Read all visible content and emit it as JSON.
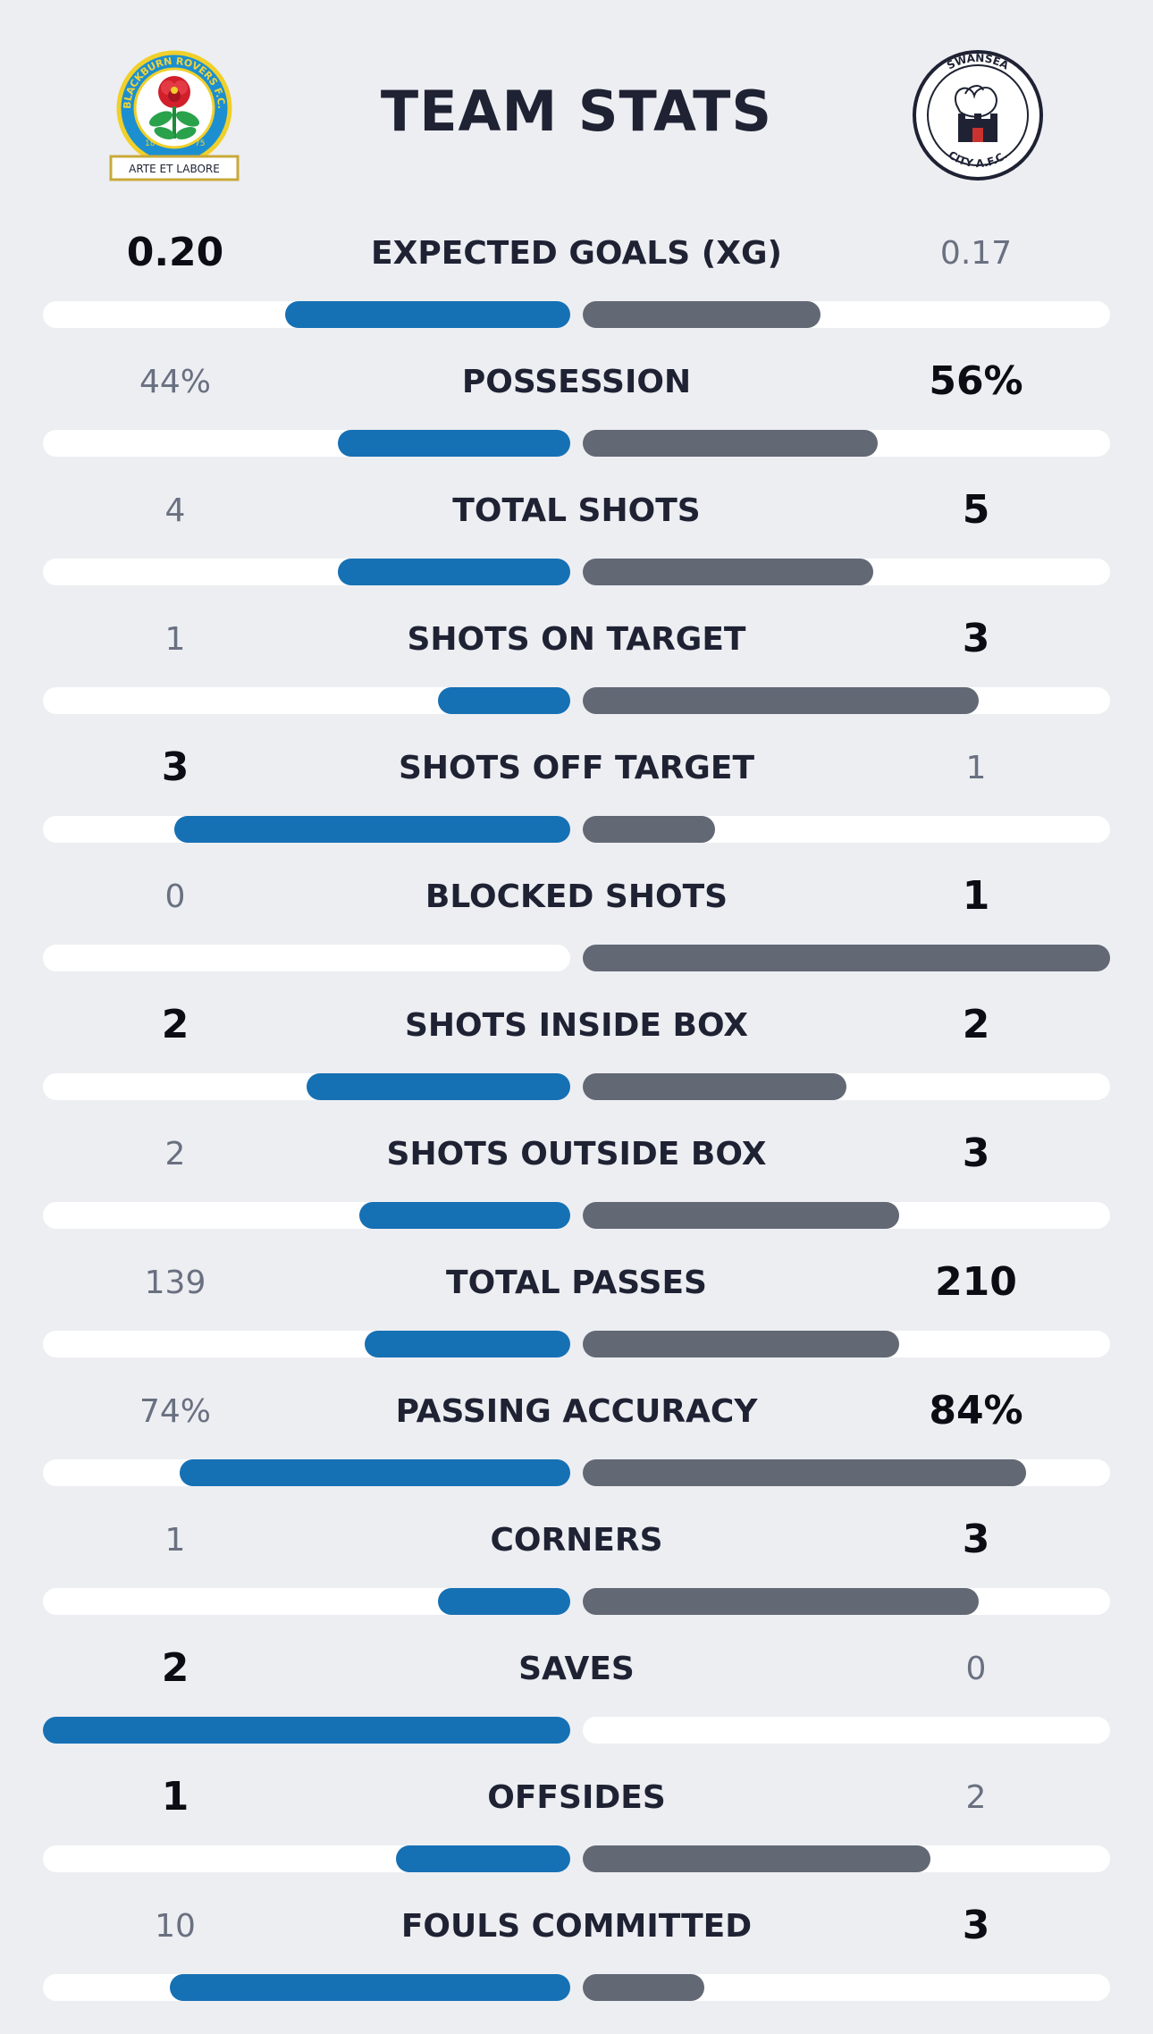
{
  "title": "TEAM STATS",
  "home": {
    "crest_top_text": "BLACKBURN ROVERS F.C.",
    "crest_motto": "ARTE ET LABORE",
    "crest_year_left": "18",
    "crest_year_right": "75",
    "color": "#1670b4"
  },
  "away": {
    "crest_top_text": "SWANSEA",
    "crest_bottom_text": "CITY A.F.C.",
    "color": "#626874"
  },
  "stats": [
    {
      "label": "EXPECTED GOALS (XG)",
      "home": "0.20",
      "away": "0.17",
      "home_share": 0.54,
      "away_share": 0.45,
      "leader": "home"
    },
    {
      "label": "POSSESSION",
      "home": "44%",
      "away": "56%",
      "home_share": 0.44,
      "away_share": 0.56,
      "leader": "away"
    },
    {
      "label": "TOTAL SHOTS",
      "home": "4",
      "away": "5",
      "home_share": 0.44,
      "away_share": 0.55,
      "leader": "away"
    },
    {
      "label": "SHOTS ON TARGET",
      "home": "1",
      "away": "3",
      "home_share": 0.25,
      "away_share": 0.75,
      "leader": "away"
    },
    {
      "label": "SHOTS OFF TARGET",
      "home": "3",
      "away": "1",
      "home_share": 0.75,
      "away_share": 0.25,
      "leader": "home"
    },
    {
      "label": "BLOCKED SHOTS",
      "home": "0",
      "away": "1",
      "home_share": 0.0,
      "away_share": 1.0,
      "leader": "away"
    },
    {
      "label": "SHOTS INSIDE BOX",
      "home": "2",
      "away": "2",
      "home_share": 0.5,
      "away_share": 0.5,
      "leader": "both"
    },
    {
      "label": "SHOTS OUTSIDE BOX",
      "home": "2",
      "away": "3",
      "home_share": 0.4,
      "away_share": 0.6,
      "leader": "away"
    },
    {
      "label": "TOTAL PASSES",
      "home": "139",
      "away": "210",
      "home_share": 0.39,
      "away_share": 0.6,
      "leader": "away"
    },
    {
      "label": "PASSING ACCURACY",
      "home": "74%",
      "away": "84%",
      "home_share": 0.74,
      "away_share": 0.84,
      "leader": "away"
    },
    {
      "label": "CORNERS",
      "home": "1",
      "away": "3",
      "home_share": 0.25,
      "away_share": 0.75,
      "leader": "away"
    },
    {
      "label": "SAVES",
      "home": "2",
      "away": "0",
      "home_share": 1.0,
      "away_share": 0.0,
      "leader": "home"
    },
    {
      "label": "OFFSIDES",
      "home": "1",
      "away": "2",
      "home_share": 0.33,
      "away_share": 0.66,
      "leader": "home"
    },
    {
      "label": "FOULS COMMITTED",
      "home": "10",
      "away": "3",
      "home_share": 0.76,
      "away_share": 0.23,
      "leader": "away"
    }
  ]
}
